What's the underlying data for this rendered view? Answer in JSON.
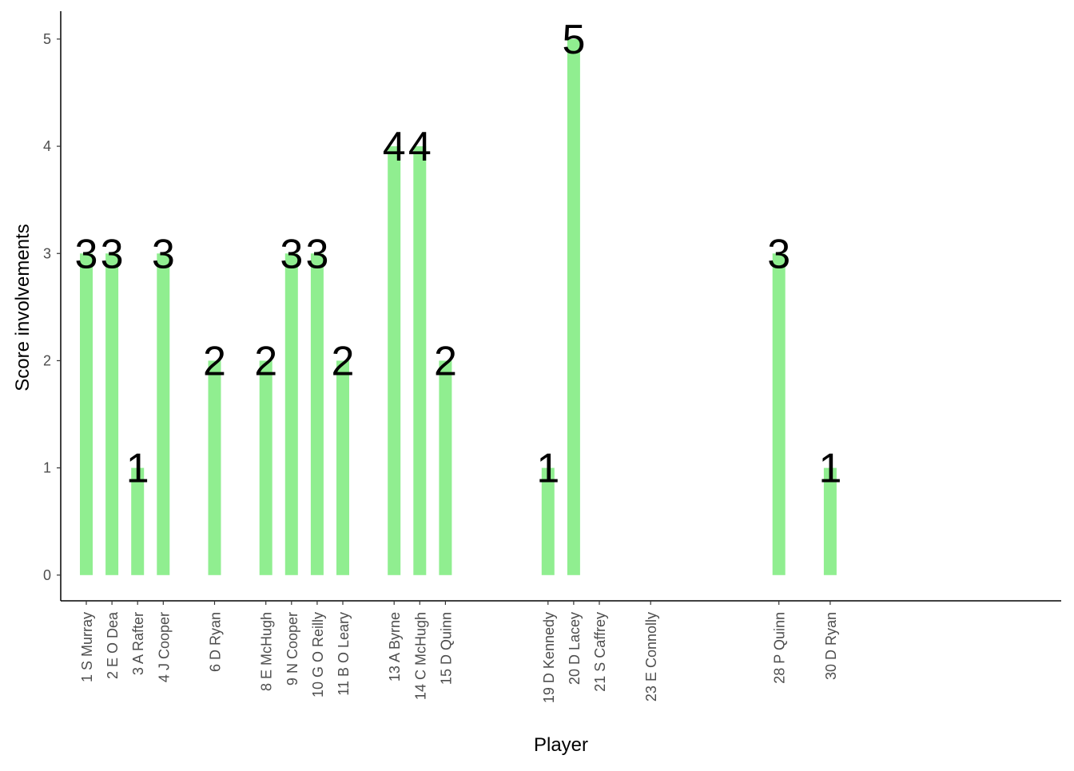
{
  "chart_data": {
    "type": "bar",
    "x_label": "Player",
    "y_label": "Score involvements",
    "categories": [
      "1 S Murray",
      "2 E O Dea",
      "3 A Rafter",
      "4 J Cooper",
      null,
      "6 D Ryan",
      null,
      "8 E McHugh",
      "9 N Cooper",
      "10 G O Reilly",
      "11 B O Leary",
      null,
      "13 A Byrne",
      "14 C McHugh",
      "15 D Quinn",
      null,
      null,
      null,
      "19 D Kennedy",
      "20 D Lacey",
      "21 S Caffrey",
      null,
      "23 E Connolly",
      null,
      null,
      null,
      null,
      "28 P Quinn",
      null,
      "30 D Ryan"
    ],
    "values": [
      3,
      3,
      1,
      3,
      null,
      2,
      null,
      2,
      3,
      3,
      2,
      null,
      4,
      4,
      2,
      null,
      null,
      null,
      1,
      5,
      null,
      null,
      null,
      null,
      null,
      null,
      null,
      3,
      null,
      1
    ],
    "color": "#90ee90",
    "ylim": [
      -0.24,
      5.26
    ],
    "yticks": [
      0,
      1,
      2,
      3,
      4,
      5
    ],
    "grid": false
  }
}
